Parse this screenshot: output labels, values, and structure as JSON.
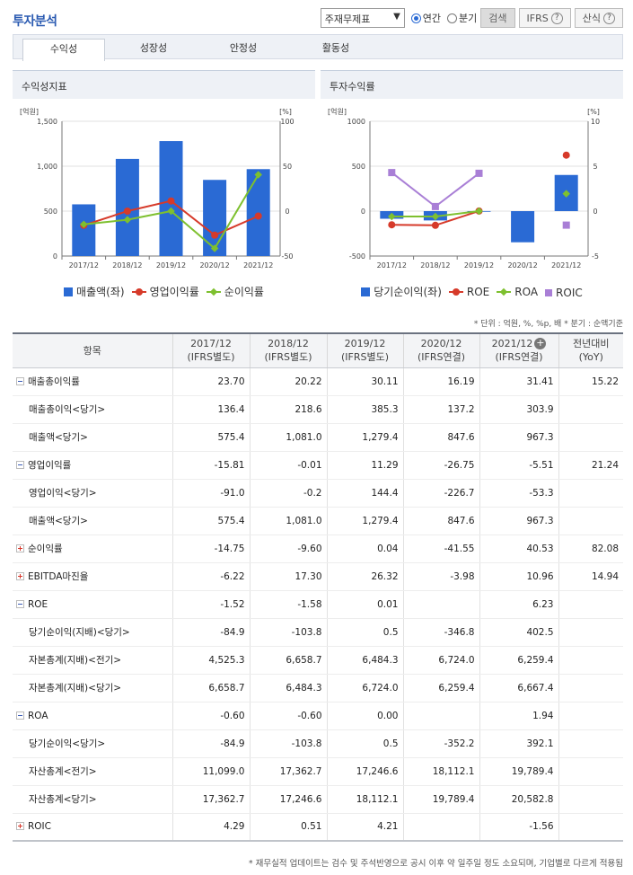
{
  "header": {
    "title": "투자분석",
    "select_value": "주재무제표",
    "radio_annual": "연간",
    "radio_quarter": "분기",
    "search_label": "검색",
    "ifrs_label": "IFRS",
    "formula_label": "산식",
    "help_glyph": "?"
  },
  "tabs": [
    "수익성",
    "성장성",
    "안정성",
    "활동성"
  ],
  "panels": {
    "left_title": "수익성지표",
    "right_title": "투자수익률"
  },
  "chart_data": [
    {
      "type": "bar",
      "title": "수익성지표",
      "categories": [
        "2017/12",
        "2018/12",
        "2019/12",
        "2020/12",
        "2021/12"
      ],
      "y_left_unit": "[억원]",
      "y_right_unit": "[%]",
      "y_left_ticks": [
        "1,500",
        "1,000",
        "500",
        "0"
      ],
      "y_right_ticks": [
        "100",
        "50",
        "0",
        "-50"
      ],
      "ylim_left": [
        0,
        1500
      ],
      "ylim_right": [
        -50,
        100
      ],
      "series": [
        {
          "name": "매출액(좌)",
          "kind": "bar",
          "axis": "left",
          "color": "#2a6ad4",
          "values": [
            575.4,
            1081.0,
            1279.4,
            847.6,
            967.3
          ]
        },
        {
          "name": "영업이익률",
          "kind": "line",
          "axis": "right",
          "marker": "circle",
          "color": "#d63a2a",
          "values": [
            -15.81,
            -0.01,
            11.29,
            -26.75,
            -5.51
          ]
        },
        {
          "name": "순이익률",
          "kind": "line",
          "axis": "right",
          "marker": "diamond",
          "color": "#7ec02f",
          "values": [
            -14.75,
            -9.6,
            0.04,
            -41.55,
            40.53
          ]
        }
      ]
    },
    {
      "type": "bar",
      "title": "투자수익률",
      "categories": [
        "2017/12",
        "2018/12",
        "2019/12",
        "2020/12",
        "2021/12"
      ],
      "y_left_unit": "[억원]",
      "y_right_unit": "[%]",
      "y_left_ticks": [
        "1000",
        "500",
        "0",
        "-500"
      ],
      "y_right_ticks": [
        "10",
        "5",
        "0",
        "-5"
      ],
      "ylim_left": [
        -500,
        1000
      ],
      "ylim_right": [
        -5,
        10
      ],
      "series": [
        {
          "name": "당기순이익(좌)",
          "kind": "bar",
          "axis": "left",
          "color": "#2a6ad4",
          "values": [
            -84.9,
            -103.8,
            0.5,
            -346.8,
            402.5
          ]
        },
        {
          "name": "ROE",
          "kind": "line",
          "axis": "right",
          "marker": "circle",
          "color": "#d63a2a",
          "values": [
            -1.52,
            -1.58,
            0.01,
            null,
            6.23
          ]
        },
        {
          "name": "ROA",
          "kind": "line",
          "axis": "right",
          "marker": "diamond",
          "color": "#7ec02f",
          "values": [
            -0.6,
            -0.6,
            0.0,
            null,
            1.94
          ]
        },
        {
          "name": "ROIC",
          "kind": "line",
          "axis": "right",
          "marker": "square",
          "color": "#a97fd6",
          "values": [
            4.29,
            0.51,
            4.21,
            null,
            -1.56
          ]
        }
      ]
    }
  ],
  "unit_note": "* 단위 : 억원, %, %p, 배   * 분기 : 순액기준",
  "table": {
    "header_item": "항목",
    "columns": [
      {
        "year": "2017/12",
        "basis": "(IFRS별도)"
      },
      {
        "year": "2018/12",
        "basis": "(IFRS별도)"
      },
      {
        "year": "2019/12",
        "basis": "(IFRS별도)"
      },
      {
        "year": "2020/12",
        "basis": "(IFRS연결)"
      },
      {
        "year": "2021/12",
        "basis": "(IFRS연결)"
      }
    ],
    "yoy_label": "전년대비",
    "yoy_sub": "(YoY)",
    "plus_glyph": "+",
    "rows": [
      {
        "label": "매출총이익률",
        "type": "minus",
        "values": [
          "23.70",
          "20.22",
          "30.11",
          "16.19",
          "31.41"
        ],
        "yoy": "15.22"
      },
      {
        "label": "매출총이익<당기>",
        "type": "sub",
        "values": [
          "136.4",
          "218.6",
          "385.3",
          "137.2",
          "303.9"
        ],
        "yoy": ""
      },
      {
        "label": "매출액<당기>",
        "type": "sub",
        "values": [
          "575.4",
          "1,081.0",
          "1,279.4",
          "847.6",
          "967.3"
        ],
        "yoy": ""
      },
      {
        "label": "영업이익률",
        "type": "minus",
        "values": [
          "-15.81",
          "-0.01",
          "11.29",
          "-26.75",
          "-5.51"
        ],
        "yoy": "21.24"
      },
      {
        "label": "영업이익<당기>",
        "type": "sub",
        "values": [
          "-91.0",
          "-0.2",
          "144.4",
          "-226.7",
          "-53.3"
        ],
        "yoy": ""
      },
      {
        "label": "매출액<당기>",
        "type": "sub",
        "values": [
          "575.4",
          "1,081.0",
          "1,279.4",
          "847.6",
          "967.3"
        ],
        "yoy": ""
      },
      {
        "label": "순이익률",
        "type": "plus",
        "values": [
          "-14.75",
          "-9.60",
          "0.04",
          "-41.55",
          "40.53"
        ],
        "yoy": "82.08"
      },
      {
        "label": "EBITDA마진율",
        "type": "plus",
        "values": [
          "-6.22",
          "17.30",
          "26.32",
          "-3.98",
          "10.96"
        ],
        "yoy": "14.94"
      },
      {
        "label": "ROE",
        "type": "minus",
        "values": [
          "-1.52",
          "-1.58",
          "0.01",
          "",
          "6.23"
        ],
        "yoy": ""
      },
      {
        "label": "당기순이익(지배)<당기>",
        "type": "sub",
        "values": [
          "-84.9",
          "-103.8",
          "0.5",
          "-346.8",
          "402.5"
        ],
        "yoy": ""
      },
      {
        "label": "자본총계(지배)<전기>",
        "type": "sub",
        "values": [
          "4,525.3",
          "6,658.7",
          "6,484.3",
          "6,724.0",
          "6,259.4"
        ],
        "yoy": ""
      },
      {
        "label": "자본총계(지배)<당기>",
        "type": "sub",
        "values": [
          "6,658.7",
          "6,484.3",
          "6,724.0",
          "6,259.4",
          "6,667.4"
        ],
        "yoy": ""
      },
      {
        "label": "ROA",
        "type": "minus",
        "values": [
          "-0.60",
          "-0.60",
          "0.00",
          "",
          "1.94"
        ],
        "yoy": ""
      },
      {
        "label": "당기순이익<당기>",
        "type": "sub",
        "values": [
          "-84.9",
          "-103.8",
          "0.5",
          "-352.2",
          "392.1"
        ],
        "yoy": ""
      },
      {
        "label": "자산총계<전기>",
        "type": "sub",
        "values": [
          "11,099.0",
          "17,362.7",
          "17,246.6",
          "18,112.1",
          "19,789.4"
        ],
        "yoy": ""
      },
      {
        "label": "자산총계<당기>",
        "type": "sub",
        "values": [
          "17,362.7",
          "17,246.6",
          "18,112.1",
          "19,789.4",
          "20,582.8"
        ],
        "yoy": ""
      },
      {
        "label": "ROIC",
        "type": "plus",
        "values": [
          "4.29",
          "0.51",
          "4.21",
          "",
          "-1.56"
        ],
        "yoy": ""
      }
    ]
  },
  "footnote": "* 재무실적 업데이트는 검수 및 주석반영으로 공시 이후 약 일주일 정도 소요되며, 기업별로 다르게 적용됨"
}
